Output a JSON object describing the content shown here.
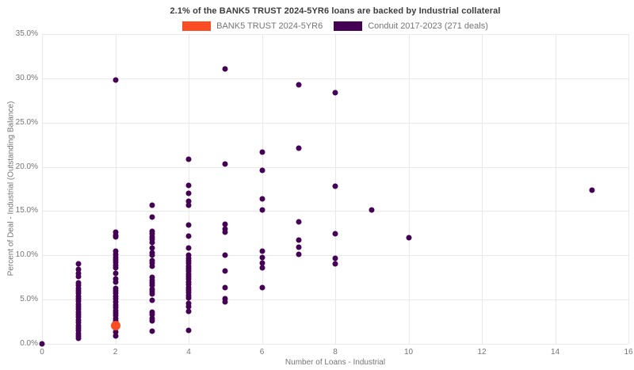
{
  "title": "2.1% of the BANK5 TRUST 2024-5YR6 loans are backed by Industrial collateral",
  "legend": [
    {
      "label": "BANK5 TRUST 2024-5YR6",
      "color": "#fa4d23"
    },
    {
      "label": "Conduit 2017-2023 (271 deals)",
      "color": "#440154"
    }
  ],
  "colors": {
    "highlight": "#fa4d23",
    "conduit": "#440154",
    "gridline": "#e9e9e9",
    "tick_text": "#757575",
    "title_text": "#3d3d3d"
  },
  "chart_data": {
    "type": "scatter",
    "title": "2.1% of the BANK5 TRUST 2024-5YR6 loans are backed by Industrial collateral",
    "xlabel": "Number of Loans - Industrial",
    "ylabel": "Percent of Deal - Industrial (Outstanding Balance)",
    "xlim": [
      0,
      16
    ],
    "ylim": [
      0,
      35
    ],
    "x_ticks": [
      0,
      2,
      4,
      6,
      8,
      10,
      12,
      14,
      16
    ],
    "y_ticks": [
      0,
      5,
      10,
      15,
      20,
      25,
      30,
      35
    ],
    "y_tick_labels": [
      "0.0%",
      "5.0%",
      "10.0%",
      "15.0%",
      "20.0%",
      "25.0%",
      "30.0%",
      "35.0%"
    ],
    "grid": true,
    "legend_position": "top-center",
    "series": [
      {
        "name": "Conduit 2017-2023 (271 deals)",
        "color": "#440154",
        "marker_size": 7,
        "points": [
          [
            0,
            0.0
          ],
          [
            1,
            9.0
          ],
          [
            1,
            8.4
          ],
          [
            1,
            8.0
          ],
          [
            1,
            7.6
          ],
          [
            1,
            6.9
          ],
          [
            1,
            6.6
          ],
          [
            1,
            6.3
          ],
          [
            1,
            6.0
          ],
          [
            1,
            5.7
          ],
          [
            1,
            5.4
          ],
          [
            1,
            5.1
          ],
          [
            1,
            4.8
          ],
          [
            1,
            4.5
          ],
          [
            1,
            4.2
          ],
          [
            1,
            3.9
          ],
          [
            1,
            3.6
          ],
          [
            1,
            3.3
          ],
          [
            1,
            3.0
          ],
          [
            1,
            2.7
          ],
          [
            1,
            2.4
          ],
          [
            1,
            2.1
          ],
          [
            1,
            1.8
          ],
          [
            1,
            1.5
          ],
          [
            1,
            1.2
          ],
          [
            1,
            0.9
          ],
          [
            1,
            0.6
          ],
          [
            2,
            29.8
          ],
          [
            2,
            12.6
          ],
          [
            2,
            12.3
          ],
          [
            2,
            12.1
          ],
          [
            2,
            10.5
          ],
          [
            2,
            10.1
          ],
          [
            2,
            9.8
          ],
          [
            2,
            9.5
          ],
          [
            2,
            9.2
          ],
          [
            2,
            8.9
          ],
          [
            2,
            8.6
          ],
          [
            2,
            8.0
          ],
          [
            2,
            7.3
          ],
          [
            2,
            7.0
          ],
          [
            2,
            6.3
          ],
          [
            2,
            6.0
          ],
          [
            2,
            5.7
          ],
          [
            2,
            5.4
          ],
          [
            2,
            5.1
          ],
          [
            2,
            4.7
          ],
          [
            2,
            4.4
          ],
          [
            2,
            4.1
          ],
          [
            2,
            3.8
          ],
          [
            2,
            3.5
          ],
          [
            2,
            3.2
          ],
          [
            2,
            2.9
          ],
          [
            2,
            2.6
          ],
          [
            2,
            1.3
          ],
          [
            2,
            0.9
          ],
          [
            3,
            15.7
          ],
          [
            3,
            14.3
          ],
          [
            3,
            12.7
          ],
          [
            3,
            12.4
          ],
          [
            3,
            12.1
          ],
          [
            3,
            11.8
          ],
          [
            3,
            11.5
          ],
          [
            3,
            10.8
          ],
          [
            3,
            10.3
          ],
          [
            3,
            10.0
          ],
          [
            3,
            9.4
          ],
          [
            3,
            9.1
          ],
          [
            3,
            8.8
          ],
          [
            3,
            7.5
          ],
          [
            3,
            7.2
          ],
          [
            3,
            6.9
          ],
          [
            3,
            6.6
          ],
          [
            3,
            6.2
          ],
          [
            3,
            5.9
          ],
          [
            3,
            5.6
          ],
          [
            3,
            4.9
          ],
          [
            3,
            3.6
          ],
          [
            3,
            3.3
          ],
          [
            3,
            2.9
          ],
          [
            3,
            2.6
          ],
          [
            3,
            1.4
          ],
          [
            4,
            20.9
          ],
          [
            4,
            17.9
          ],
          [
            4,
            17.0
          ],
          [
            4,
            16.1
          ],
          [
            4,
            15.7
          ],
          [
            4,
            13.4
          ],
          [
            4,
            12.2
          ],
          [
            4,
            10.8
          ],
          [
            4,
            10.0
          ],
          [
            4,
            9.7
          ],
          [
            4,
            9.4
          ],
          [
            4,
            9.1
          ],
          [
            4,
            8.8
          ],
          [
            4,
            8.5
          ],
          [
            4,
            8.2
          ],
          [
            4,
            7.9
          ],
          [
            4,
            7.6
          ],
          [
            4,
            7.3
          ],
          [
            4,
            7.0
          ],
          [
            4,
            6.7
          ],
          [
            4,
            6.4
          ],
          [
            4,
            6.1
          ],
          [
            4,
            5.8
          ],
          [
            4,
            5.5
          ],
          [
            4,
            5.2
          ],
          [
            4,
            4.6
          ],
          [
            4,
            4.2
          ],
          [
            4,
            3.7
          ],
          [
            4,
            1.5
          ],
          [
            5,
            31.1
          ],
          [
            5,
            20.3
          ],
          [
            5,
            13.5
          ],
          [
            5,
            13.0
          ],
          [
            5,
            12.6
          ],
          [
            5,
            10.0
          ],
          [
            5,
            8.2
          ],
          [
            5,
            6.4
          ],
          [
            5,
            5.1
          ],
          [
            5,
            4.7
          ],
          [
            6,
            21.7
          ],
          [
            6,
            19.6
          ],
          [
            6,
            16.4
          ],
          [
            6,
            15.1
          ],
          [
            6,
            10.5
          ],
          [
            6,
            9.8
          ],
          [
            6,
            9.1
          ],
          [
            6,
            8.6
          ],
          [
            6,
            6.4
          ],
          [
            7,
            29.3
          ],
          [
            7,
            22.1
          ],
          [
            7,
            13.8
          ],
          [
            7,
            11.7
          ],
          [
            7,
            10.9
          ],
          [
            7,
            10.1
          ],
          [
            8,
            28.4
          ],
          [
            8,
            17.8
          ],
          [
            8,
            12.4
          ],
          [
            8,
            9.7
          ],
          [
            8,
            9.0
          ],
          [
            9,
            15.1
          ],
          [
            10,
            12.0
          ],
          [
            15,
            17.4
          ]
        ]
      },
      {
        "name": "BANK5 TRUST 2024-5YR6",
        "color": "#fa4d23",
        "marker_size": 12,
        "points": [
          [
            2,
            2.1
          ]
        ]
      }
    ]
  }
}
